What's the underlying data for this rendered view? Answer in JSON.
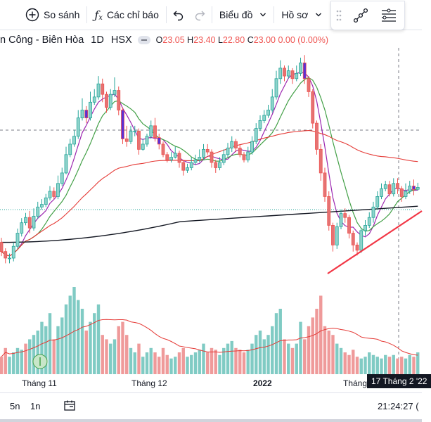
{
  "toolbar": {
    "compare_label": "So sánh",
    "indicators_label": "Các chỉ báo",
    "chart_type_label": "Biểu đồ",
    "profile_label": "Hồ sơ"
  },
  "legend": {
    "symbol_name": "n Công - Biên Hòa",
    "interval": "1D",
    "exchange": "HSX",
    "open_prefix": "O",
    "open": "23.05",
    "high_prefix": "H",
    "high": "23.40",
    "low_prefix": "L",
    "low": "22.80",
    "close_prefix": "C",
    "close": "23.00",
    "change": "0.00 (0.00%)"
  },
  "time_axis": {
    "labels": [
      "Tháng 11",
      "Tháng 12",
      "2022",
      "Tháng"
    ],
    "crosshair_date": "17 Tháng 2 '22"
  },
  "bottombar": {
    "range_5n": "5n",
    "range_1n": "1n",
    "clock": "21:24:27 ("
  },
  "colors": {
    "up": "#26a69a",
    "down": "#ef5350",
    "up_volume": "#80cbc4",
    "down_volume": "#ef9a9a",
    "ma_fast": "#9c27b0",
    "ma_mid": "#43a047",
    "ma_slow": "#e53935",
    "ma_long": "#131722",
    "trendline": "#f23645"
  },
  "chart_data": {
    "type": "candlestick",
    "candles": [
      [
        1.9,
        1.2,
        2.25,
        0.85
      ],
      [
        1.2,
        0.7,
        1.45,
        0.3
      ],
      [
        0.7,
        0.7,
        1.05,
        0.3
      ],
      [
        0.7,
        1.6,
        1.9,
        0.45
      ],
      [
        1.6,
        2.6,
        2.95,
        1.4
      ],
      [
        2.6,
        3.4,
        3.75,
        2.35
      ],
      [
        3.4,
        3.8,
        4.15,
        3.2
      ],
      [
        3.8,
        3.0,
        4.3,
        2.6
      ],
      [
        3.0,
        3.9,
        4.5,
        2.8
      ],
      [
        3.9,
        4.6,
        5.0,
        3.7
      ],
      [
        4.6,
        4.8,
        5.2,
        4.4
      ],
      [
        4.8,
        5.3,
        5.6,
        4.6
      ],
      [
        5.3,
        5.8,
        6.2,
        5.1
      ],
      [
        5.8,
        5.4,
        6.1,
        5.2
      ],
      [
        5.4,
        6.4,
        7.0,
        5.2
      ],
      [
        6.4,
        7.2,
        7.6,
        6.2
      ],
      [
        7.2,
        8.6,
        9.2,
        7.1
      ],
      [
        8.6,
        9.4,
        9.8,
        8.4
      ],
      [
        9.4,
        10.0,
        10.5,
        9.2
      ],
      [
        10.0,
        11.4,
        12.0,
        9.8
      ],
      [
        11.4,
        12.0,
        12.9,
        11.2
      ],
      [
        12.0,
        11.4,
        12.3,
        11.0
      ],
      [
        11.4,
        12.6,
        13.4,
        11.2
      ],
      [
        12.6,
        13.0,
        13.6,
        12.4
      ],
      [
        13.0,
        14.0,
        14.6,
        12.8
      ],
      [
        14.0,
        13.2,
        14.4,
        12.6
      ],
      [
        13.2,
        12.2,
        13.4,
        11.8
      ],
      [
        12.2,
        13.2,
        13.6,
        12.0
      ],
      [
        13.2,
        13.5,
        14.5,
        13.0
      ],
      [
        13.5,
        12.0,
        13.8,
        11.6
      ],
      [
        12.0,
        9.8,
        12.2,
        9.4
      ],
      [
        9.8,
        9.6,
        10.8,
        9.2
      ],
      [
        9.6,
        10.4,
        10.8,
        9.4
      ],
      [
        10.4,
        10.4,
        10.8,
        10.0
      ],
      [
        10.4,
        9.0,
        10.6,
        8.6
      ],
      [
        9.0,
        9.4,
        9.8,
        8.9
      ],
      [
        9.4,
        10.0,
        10.2,
        9.2
      ],
      [
        10.0,
        10.8,
        11.2,
        9.8
      ],
      [
        10.8,
        9.9,
        11.4,
        9.6
      ],
      [
        9.9,
        9.4,
        10.2,
        9.0
      ],
      [
        9.4,
        8.6,
        9.6,
        8.4
      ],
      [
        8.6,
        8.2,
        8.8,
        8.0
      ],
      [
        8.2,
        8.4,
        8.8,
        8.0
      ],
      [
        8.4,
        8.7,
        9.2,
        8.3
      ],
      [
        8.7,
        8.0,
        8.9,
        7.6
      ],
      [
        8.0,
        7.4,
        8.2,
        7.0
      ],
      [
        7.4,
        7.6,
        7.9,
        7.2
      ],
      [
        7.6,
        8.0,
        8.4,
        7.4
      ],
      [
        8.0,
        8.2,
        8.6,
        7.8
      ],
      [
        8.2,
        8.4,
        9.0,
        8.0
      ],
      [
        8.4,
        9.0,
        9.4,
        8.2
      ],
      [
        9.0,
        8.8,
        9.4,
        8.6
      ],
      [
        8.8,
        8.0,
        9.0,
        7.6
      ],
      [
        8.0,
        7.6,
        8.2,
        7.2
      ],
      [
        7.6,
        8.0,
        8.4,
        7.4
      ],
      [
        8.0,
        8.6,
        9.0,
        7.8
      ],
      [
        8.6,
        9.1,
        9.5,
        8.4
      ],
      [
        9.1,
        9.6,
        10.0,
        8.8
      ],
      [
        9.6,
        9.1,
        9.8,
        8.8
      ],
      [
        9.1,
        8.6,
        9.4,
        8.4
      ],
      [
        8.6,
        8.2,
        8.8,
        8.0
      ],
      [
        8.2,
        8.8,
        9.2,
        8.0
      ],
      [
        8.8,
        9.6,
        10.0,
        8.6
      ],
      [
        9.6,
        10.6,
        11.0,
        9.4
      ],
      [
        10.6,
        11.2,
        11.6,
        10.4
      ],
      [
        11.2,
        11.6,
        12.0,
        11.0
      ],
      [
        11.6,
        12.0,
        12.4,
        11.4
      ],
      [
        12.0,
        13.0,
        13.6,
        11.8
      ],
      [
        13.0,
        14.4,
        15.0,
        12.8
      ],
      [
        14.4,
        15.2,
        15.8,
        14.0
      ],
      [
        15.2,
        14.6,
        15.4,
        14.2
      ],
      [
        14.6,
        15.0,
        15.4,
        14.4
      ],
      [
        15.0,
        14.4,
        15.2,
        14.0
      ],
      [
        14.4,
        14.8,
        15.4,
        14.2
      ],
      [
        14.8,
        15.6,
        16.0,
        14.6
      ],
      [
        15.6,
        14.4,
        16.2,
        14.0
      ],
      [
        14.4,
        13.4,
        14.6,
        13.0
      ],
      [
        13.4,
        11.0,
        13.6,
        10.6
      ],
      [
        11.0,
        9.0,
        11.2,
        8.6
      ],
      [
        9.0,
        7.2,
        9.4,
        6.6
      ],
      [
        7.2,
        5.4,
        7.6,
        5.0
      ],
      [
        5.4,
        3.2,
        5.8,
        2.8
      ],
      [
        3.2,
        1.7,
        3.4,
        1.2
      ],
      [
        1.7,
        3.1,
        3.4,
        1.4
      ],
      [
        3.1,
        4.1,
        4.4,
        2.9
      ],
      [
        4.1,
        3.8,
        4.5,
        3.4
      ],
      [
        3.8,
        2.6,
        4.0,
        2.2
      ],
      [
        2.6,
        1.7,
        2.8,
        1.2
      ],
      [
        1.7,
        1.3,
        1.9,
        0.9
      ],
      [
        1.3,
        2.8,
        3.0,
        1.1
      ],
      [
        2.8,
        3.2,
        3.6,
        2.4
      ],
      [
        3.2,
        3.8,
        4.2,
        3.0
      ],
      [
        3.8,
        4.6,
        5.0,
        3.4
      ],
      [
        4.6,
        5.4,
        5.8,
        4.4
      ],
      [
        5.4,
        6.0,
        6.4,
        5.2
      ],
      [
        6.0,
        6.3,
        6.6,
        5.8
      ],
      [
        6.3,
        5.6,
        6.6,
        5.4
      ],
      [
        5.6,
        6.4,
        6.8,
        5.4
      ],
      [
        6.4,
        6.0,
        6.8,
        5.6
      ],
      [
        6.0,
        5.4,
        6.2,
        5.0
      ],
      [
        5.4,
        5.8,
        6.4,
        5.2
      ],
      [
        5.8,
        6.2,
        6.6,
        5.6
      ],
      [
        6.2,
        5.95,
        6.7,
        5.5
      ],
      [
        5.95,
        6.1,
        6.45,
        5.85
      ]
    ],
    "volume": [
      [
        0.2,
        0
      ],
      [
        0.3,
        0
      ],
      [
        0.2,
        1
      ],
      [
        0.25,
        1
      ],
      [
        0.3,
        1
      ],
      [
        0.28,
        1
      ],
      [
        0.35,
        0
      ],
      [
        0.4,
        1
      ],
      [
        0.45,
        1
      ],
      [
        0.5,
        1
      ],
      [
        0.6,
        1
      ],
      [
        0.55,
        1
      ],
      [
        0.7,
        1
      ],
      [
        0.4,
        0
      ],
      [
        0.55,
        1
      ],
      [
        0.65,
        1
      ],
      [
        0.8,
        1
      ],
      [
        0.9,
        1
      ],
      [
        1.0,
        1
      ],
      [
        0.85,
        1
      ],
      [
        0.75,
        1
      ],
      [
        0.5,
        0
      ],
      [
        0.6,
        1
      ],
      [
        0.7,
        1
      ],
      [
        0.8,
        1
      ],
      [
        0.45,
        0
      ],
      [
        0.4,
        0
      ],
      [
        0.35,
        1
      ],
      [
        0.4,
        1
      ],
      [
        0.55,
        0
      ],
      [
        0.6,
        0
      ],
      [
        0.45,
        0
      ],
      [
        0.3,
        1
      ],
      [
        0.25,
        1
      ],
      [
        0.35,
        0
      ],
      [
        0.2,
        1
      ],
      [
        0.25,
        1
      ],
      [
        0.3,
        1
      ],
      [
        0.25,
        0
      ],
      [
        0.2,
        0
      ],
      [
        0.3,
        0
      ],
      [
        0.22,
        0
      ],
      [
        0.18,
        1
      ],
      [
        0.2,
        1
      ],
      [
        0.25,
        0
      ],
      [
        0.3,
        0
      ],
      [
        0.2,
        1
      ],
      [
        0.22,
        1
      ],
      [
        0.25,
        1
      ],
      [
        0.28,
        1
      ],
      [
        0.35,
        1
      ],
      [
        0.25,
        0
      ],
      [
        0.3,
        0
      ],
      [
        0.28,
        0
      ],
      [
        0.22,
        1
      ],
      [
        0.3,
        1
      ],
      [
        0.35,
        1
      ],
      [
        0.38,
        1
      ],
      [
        0.3,
        0
      ],
      [
        0.28,
        0
      ],
      [
        0.25,
        0
      ],
      [
        0.28,
        1
      ],
      [
        0.35,
        1
      ],
      [
        0.45,
        1
      ],
      [
        0.5,
        1
      ],
      [
        0.4,
        1
      ],
      [
        0.45,
        1
      ],
      [
        0.55,
        1
      ],
      [
        0.7,
        1
      ],
      [
        0.75,
        1
      ],
      [
        0.4,
        0
      ],
      [
        0.35,
        1
      ],
      [
        0.3,
        0
      ],
      [
        0.35,
        1
      ],
      [
        0.6,
        1
      ],
      [
        0.4,
        0
      ],
      [
        0.55,
        0
      ],
      [
        0.65,
        0
      ],
      [
        0.75,
        0
      ],
      [
        0.9,
        0
      ],
      [
        0.55,
        0
      ],
      [
        0.5,
        0
      ],
      [
        0.45,
        0
      ],
      [
        0.35,
        1
      ],
      [
        0.3,
        1
      ],
      [
        0.25,
        0
      ],
      [
        0.22,
        0
      ],
      [
        0.28,
        0
      ],
      [
        0.2,
        0
      ],
      [
        0.18,
        1
      ],
      [
        0.2,
        1
      ],
      [
        0.25,
        1
      ],
      [
        0.22,
        1
      ],
      [
        0.2,
        1
      ],
      [
        0.18,
        1
      ],
      [
        0.22,
        1
      ],
      [
        0.2,
        0
      ],
      [
        0.22,
        1
      ],
      [
        0.18,
        0
      ],
      [
        0.2,
        0
      ],
      [
        0.18,
        1
      ],
      [
        0.22,
        1
      ],
      [
        0.2,
        0
      ],
      [
        0.25,
        1
      ]
    ]
  }
}
